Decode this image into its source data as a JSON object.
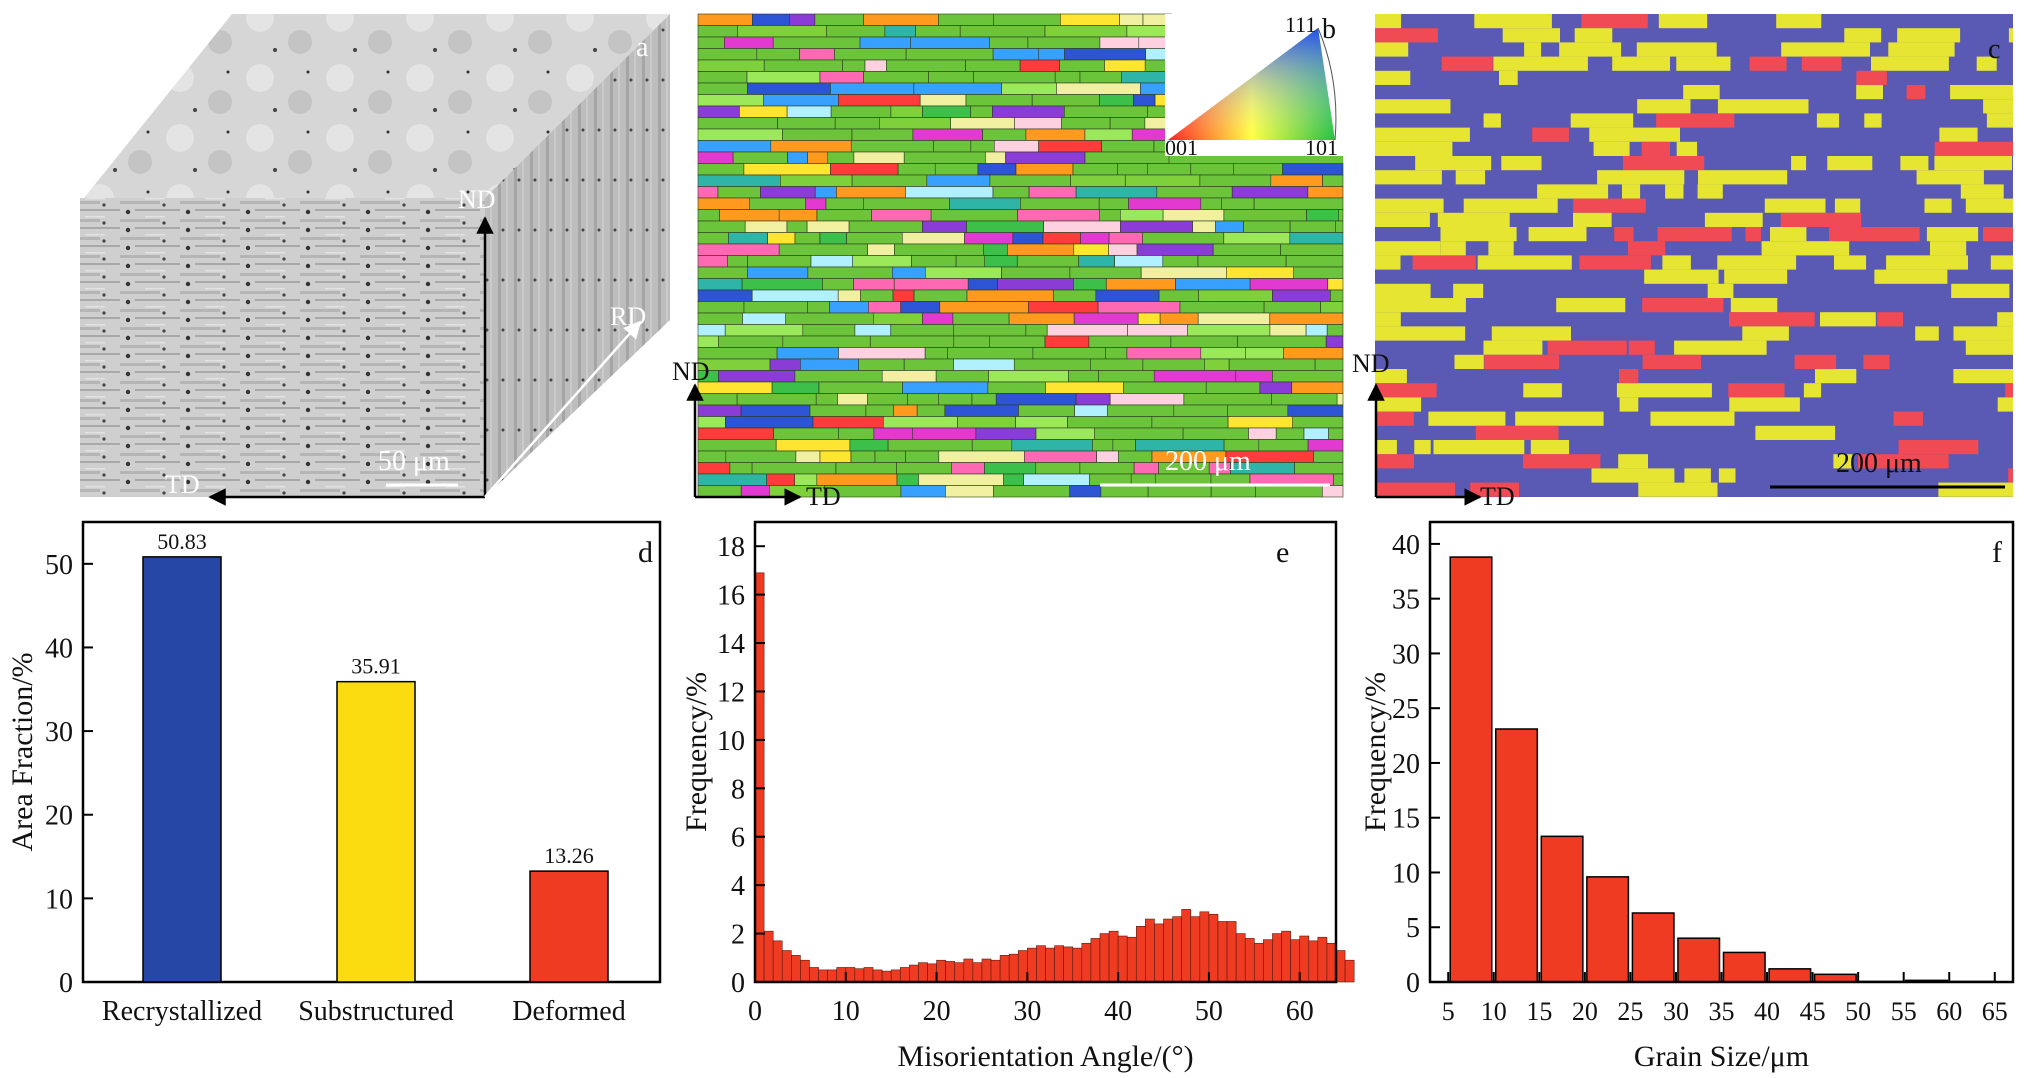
{
  "panels": {
    "a": {
      "letter": "a",
      "labels": {
        "nd": "ND",
        "rd": "RD",
        "td": "TD"
      },
      "scale_bar": "50 μm"
    },
    "b": {
      "letter": "b",
      "labels": {
        "nd": "ND",
        "td": "TD"
      },
      "scale_bar": "200 μm",
      "ipf_key": {
        "top": "111",
        "left": "001",
        "right": "101"
      }
    },
    "c": {
      "letter": "c",
      "labels": {
        "nd": "ND",
        "td": "TD"
      },
      "scale_bar": "200 μm",
      "colors": {
        "recrystallized": "#5a5ab4",
        "substructured": "#e6e632",
        "deformed": "#f04a55"
      }
    }
  },
  "chart_data": [
    {
      "panel": "d",
      "type": "bar",
      "categories": [
        "Recrystallized",
        "Substructured",
        "Deformed"
      ],
      "values": [
        50.83,
        35.91,
        13.26
      ],
      "value_labels": [
        "50.83",
        "35.91",
        "13.26"
      ],
      "colors": [
        "#2647a6",
        "#fbdc10",
        "#ef3b22"
      ],
      "title": "",
      "xlabel": "",
      "ylabel": "Area Fraction/%",
      "ylim": [
        0,
        55
      ],
      "yticks": [
        0,
        10,
        20,
        30,
        40,
        50
      ],
      "grid": false,
      "legend": "none"
    },
    {
      "panel": "e",
      "type": "bar",
      "bin_width": 1,
      "x_start": 0,
      "values": [
        16.9,
        2.1,
        1.7,
        1.3,
        1.1,
        0.9,
        0.6,
        0.5,
        0.5,
        0.6,
        0.6,
        0.55,
        0.6,
        0.5,
        0.45,
        0.5,
        0.6,
        0.7,
        0.8,
        0.75,
        0.9,
        0.85,
        0.8,
        0.95,
        0.8,
        0.95,
        0.9,
        1.1,
        1.15,
        1.3,
        1.4,
        1.5,
        1.4,
        1.5,
        1.45,
        1.4,
        1.6,
        1.8,
        2.0,
        2.1,
        1.9,
        1.85,
        2.3,
        2.6,
        2.4,
        2.6,
        2.7,
        3.0,
        2.7,
        2.9,
        2.8,
        2.5,
        2.5,
        2.0,
        1.8,
        1.6,
        1.75,
        2.0,
        2.1,
        1.75,
        1.9,
        1.7,
        1.85,
        1.6,
        1.3,
        0.9
      ],
      "xlabel": "Misorientation Angle/(°)",
      "ylabel": "Frequency/%",
      "xlim": [
        0,
        64
      ],
      "ylim": [
        0,
        19
      ],
      "xticks": [
        0,
        10,
        20,
        30,
        40,
        50,
        60
      ],
      "yticks": [
        0,
        2,
        4,
        6,
        8,
        10,
        12,
        14,
        16,
        18
      ],
      "color": "#ef3b22",
      "grid": false,
      "legend": "none"
    },
    {
      "panel": "f",
      "type": "bar",
      "bins": [
        [
          5,
          10
        ],
        [
          10,
          15
        ],
        [
          15,
          20
        ],
        [
          20,
          25
        ],
        [
          25,
          30
        ],
        [
          30,
          35
        ],
        [
          35,
          40
        ],
        [
          40,
          45
        ],
        [
          45,
          50
        ],
        [
          50,
          55
        ],
        [
          55,
          60
        ],
        [
          60,
          65
        ]
      ],
      "values": [
        38.8,
        23.1,
        13.3,
        9.6,
        6.3,
        4.0,
        2.7,
        1.2,
        0.7,
        0.05,
        0.15,
        0.05
      ],
      "xlabel": "Grain Size/μm",
      "ylabel": "Frequency/%",
      "xlim": [
        3,
        67
      ],
      "ylim": [
        0,
        42
      ],
      "xticks": [
        5,
        10,
        15,
        20,
        25,
        30,
        35,
        40,
        45,
        50,
        55,
        60,
        65
      ],
      "yticks": [
        0,
        5,
        10,
        15,
        20,
        25,
        30,
        35,
        40
      ],
      "color": "#ef3b22",
      "grid": false,
      "legend": "none"
    }
  ],
  "panel_letters": {
    "d": "d",
    "e": "e",
    "f": "f"
  }
}
